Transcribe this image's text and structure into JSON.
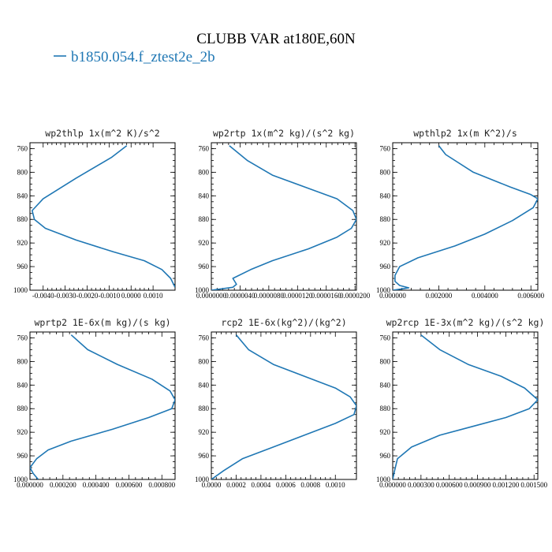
{
  "figure": {
    "title": "CLUBB VAR at180E,60N",
    "legend_label": "b1850.054.f_ztest2e_2b",
    "series_color": "#1f77b4"
  },
  "chart_data": [
    {
      "type": "line",
      "title": "wp2thlp  1x(m^2 K)/s^2",
      "xlim": [
        -0.0046,
        0.002
      ],
      "x_ticks": [
        -0.004,
        -0.003,
        -0.002,
        -0.001,
        0.0,
        0.001
      ],
      "x_tick_labels": [
        "-0.0040",
        "-0.0030",
        "-0.0020",
        "-0.0010",
        "0.0000",
        "0.0010"
      ],
      "ylim": [
        1000,
        750
      ],
      "y_ticks": [
        760,
        800,
        840,
        880,
        920,
        960,
        1000
      ],
      "y_tick_labels": [
        "760",
        "800",
        "840",
        "880",
        "920",
        "960",
        "1000"
      ],
      "series": [
        {
          "x": [
            -0.0002,
            -0.0009,
            -0.0025,
            -0.004,
            -0.0045,
            -0.0044,
            -0.0039,
            -0.0025,
            -0.0008,
            0.0006,
            0.0014,
            0.0018,
            0.002
          ],
          "y": [
            755,
            775,
            810,
            845,
            865,
            880,
            895,
            915,
            935,
            950,
            965,
            980,
            995
          ]
        }
      ]
    },
    {
      "type": "line",
      "title": "wp2rtp  1x(m^2 kg)/(s^2 kg)",
      "xlim": [
        0.0,
        2.02e-05
      ],
      "x_ticks": [
        0.0,
        4e-06,
        8e-06,
        1.2e-05,
        1.6e-05,
        2e-05
      ],
      "x_tick_labels": [
        "0.0000000",
        "0.0000040",
        "0.0000080",
        "0.0000120",
        "0.0000160",
        "0.0000200"
      ],
      "ylim": [
        1000,
        750
      ],
      "y_ticks": [
        760,
        800,
        840,
        880,
        920,
        960,
        1000
      ],
      "y_tick_labels": [
        "760",
        "800",
        "840",
        "880",
        "920",
        "960",
        "1000"
      ],
      "series": [
        {
          "x": [
            2.5e-06,
            5e-06,
            8.5e-06,
            1.3e-05,
            1.75e-05,
            1.97e-05,
            2.02e-05,
            1.95e-05,
            1.75e-05,
            1.35e-05,
            8.5e-06,
            5.5e-06,
            3e-06,
            3.5e-06,
            3e-06,
            0.0
          ],
          "y": [
            755,
            780,
            805,
            825,
            845,
            865,
            880,
            895,
            910,
            930,
            950,
            965,
            980,
            990,
            995,
            1000
          ]
        }
      ]
    },
    {
      "type": "line",
      "title": "wpthlp2  1x(m K^2)/s",
      "xlim": [
        0.0,
        0.0063
      ],
      "x_ticks": [
        0.0,
        0.002,
        0.004,
        0.006
      ],
      "x_tick_labels": [
        "0.000000",
        "0.002000",
        "0.004000",
        "0.006000"
      ],
      "ylim": [
        1000,
        750
      ],
      "y_ticks": [
        760,
        800,
        840,
        880,
        920,
        960,
        1000
      ],
      "y_tick_labels": [
        "760",
        "800",
        "840",
        "880",
        "920",
        "960",
        "1000"
      ],
      "series": [
        {
          "x": [
            0.002,
            0.0023,
            0.0035,
            0.0051,
            0.006,
            0.0063,
            0.0061,
            0.0052,
            0.004,
            0.0027,
            0.0011,
            0.0003,
            0.0001,
            0.0001,
            0.0003,
            0.0007,
            0.0
          ],
          "y": [
            755,
            770,
            800,
            825,
            838,
            845,
            860,
            882,
            905,
            925,
            945,
            960,
            975,
            985,
            992,
            996,
            1000
          ]
        }
      ]
    },
    {
      "type": "line",
      "title": "wprtp2  1E-6x(m kg)/(s kg)",
      "xlim": [
        0.0,
        0.00088
      ],
      "x_ticks": [
        0.0,
        0.0002,
        0.0004,
        0.0006,
        0.0008
      ],
      "x_tick_labels": [
        "0.000000",
        "0.000200",
        "0.000400",
        "0.000600",
        "0.000800"
      ],
      "ylim": [
        1000,
        750
      ],
      "y_ticks": [
        760,
        800,
        840,
        880,
        920,
        960,
        1000
      ],
      "y_tick_labels": [
        "760",
        "800",
        "840",
        "880",
        "920",
        "960",
        "1000"
      ],
      "series": [
        {
          "x": [
            0.00025,
            0.00035,
            0.00053,
            0.00074,
            0.00085,
            0.00088,
            0.00086,
            0.00072,
            0.0005,
            0.00025,
            0.00011,
            4e-05,
            0.0,
            2e-05,
            5e-05
          ],
          "y": [
            755,
            780,
            805,
            830,
            850,
            865,
            880,
            895,
            915,
            935,
            950,
            965,
            980,
            990,
            1000
          ]
        }
      ]
    },
    {
      "type": "line",
      "title": "rcp2  1E-6x(kg^2)/(kg^2)",
      "xlim": [
        0.0,
        0.00117
      ],
      "x_ticks": [
        0.0,
        0.0002,
        0.0004,
        0.0006,
        0.0008,
        0.001
      ],
      "x_tick_labels": [
        "0.0000",
        "0.0002",
        "0.0004",
        "0.0006",
        "0.0008",
        "0.0010"
      ],
      "ylim": [
        1000,
        750
      ],
      "y_ticks": [
        760,
        800,
        840,
        880,
        920,
        960,
        1000
      ],
      "y_tick_labels": [
        "760",
        "800",
        "840",
        "880",
        "920",
        "960",
        "1000"
      ],
      "series": [
        {
          "x": [
            0.0002,
            0.0003,
            0.0005,
            0.00075,
            0.001,
            0.00112,
            0.00117,
            0.00115,
            0.001,
            0.00075,
            0.0005,
            0.00025,
            0.0001,
            0.0
          ],
          "y": [
            755,
            780,
            805,
            825,
            845,
            860,
            875,
            890,
            905,
            925,
            945,
            965,
            985,
            1000
          ]
        }
      ]
    },
    {
      "type": "line",
      "title": "wp2rcp  1E-3x(m^2 kg)/(s^2 kg)",
      "xlim": [
        0.0,
        0.00154
      ],
      "x_ticks": [
        0.0,
        0.0003,
        0.0006,
        0.0009,
        0.0012,
        0.0015
      ],
      "x_tick_labels": [
        "0.000000",
        "0.000300",
        "0.000600",
        "0.000900",
        "0.001200",
        "0.001500"
      ],
      "ylim": [
        1000,
        750
      ],
      "y_ticks": [
        760,
        800,
        840,
        880,
        920,
        960,
        1000
      ],
      "y_tick_labels": [
        "760",
        "800",
        "840",
        "880",
        "920",
        "960",
        "1000"
      ],
      "series": [
        {
          "x": [
            0.0003,
            0.0005,
            0.0008,
            0.00115,
            0.0014,
            0.00154,
            0.00145,
            0.0012,
            0.00085,
            0.0005,
            0.0002,
            5e-05,
            2e-05,
            0.0
          ],
          "y": [
            755,
            780,
            805,
            825,
            845,
            865,
            880,
            895,
            910,
            925,
            945,
            965,
            985,
            1000
          ]
        }
      ]
    }
  ]
}
